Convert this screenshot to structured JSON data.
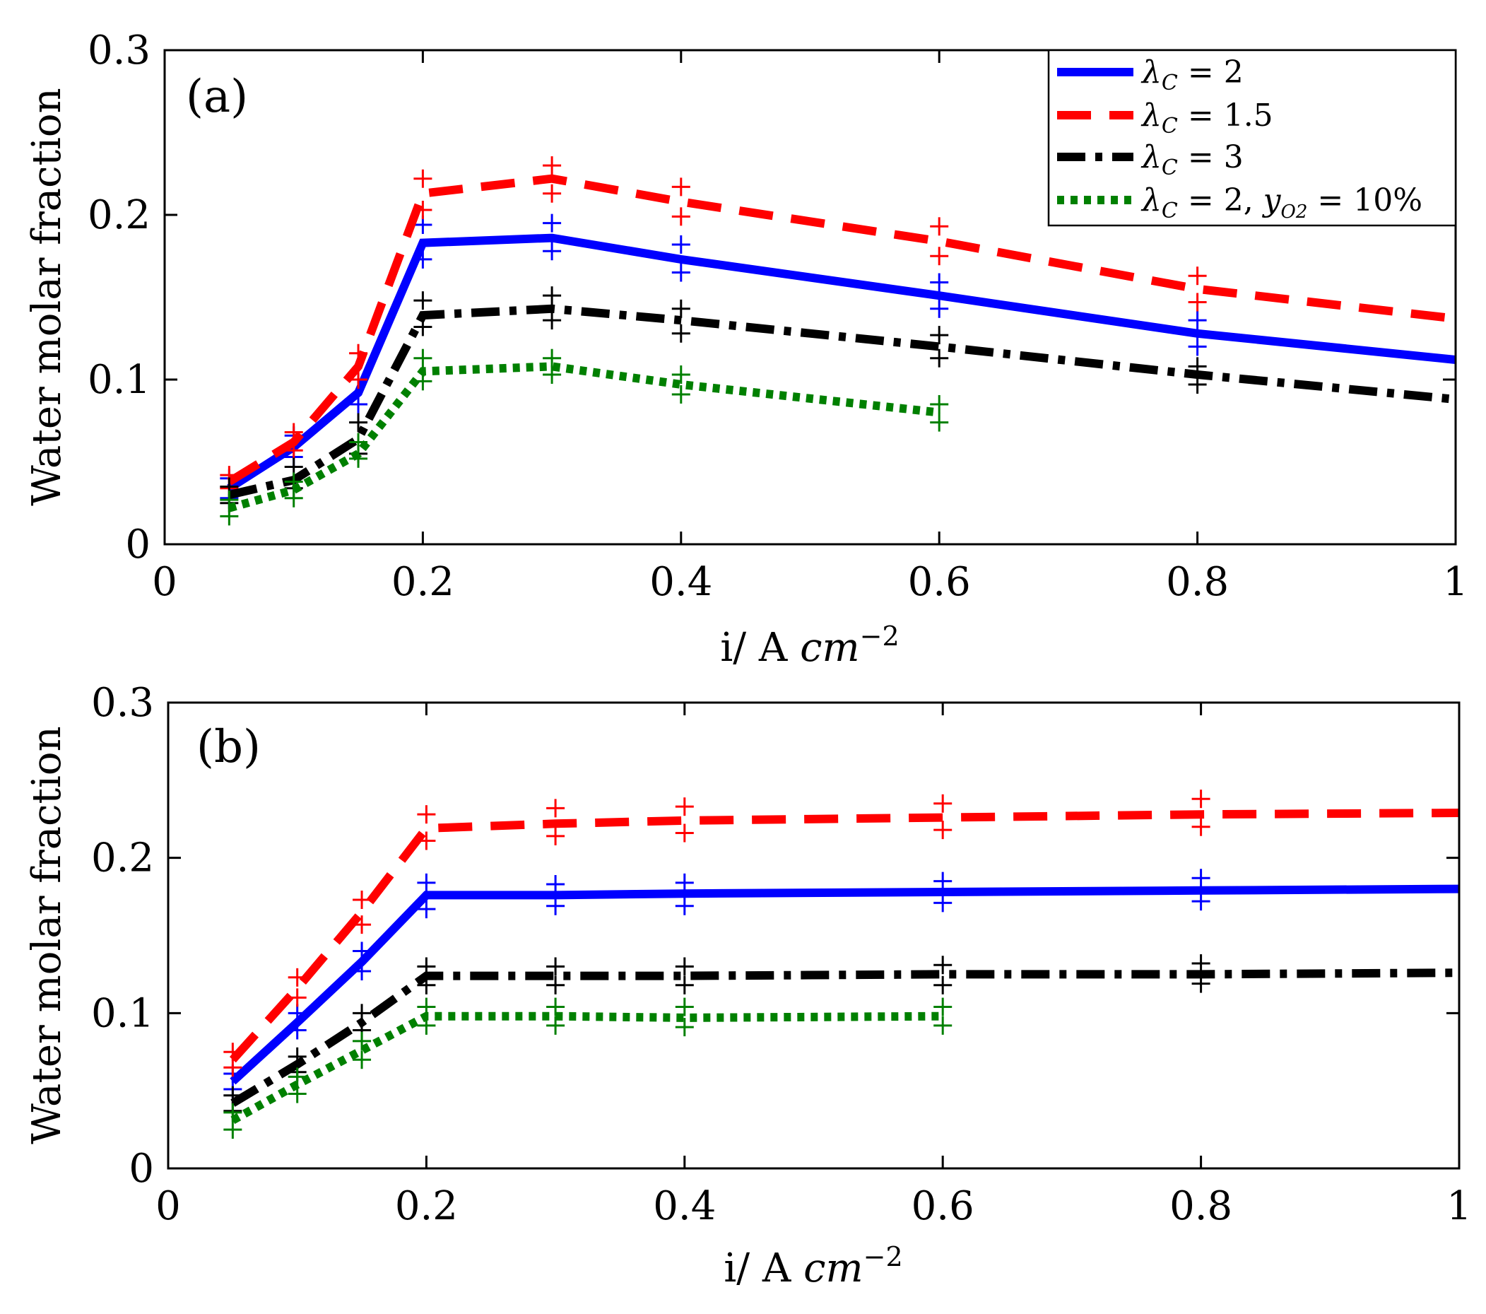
{
  "figure": {
    "legend": [
      {
        "series": "lc2",
        "label": "λC = 2",
        "base": "λ",
        "sub": "C",
        "tail": " = 2"
      },
      {
        "series": "lc15",
        "label": "λC = 1.5",
        "base": "λ",
        "sub": "C",
        "tail": " = 1.5"
      },
      {
        "series": "lc3",
        "label": "λC = 3",
        "base": "λ",
        "sub": "C",
        "tail": " = 3"
      },
      {
        "series": "lc2o2",
        "label": "λC = 2, yO2 = 10%",
        "base": "λ",
        "sub": "C",
        "tail": " = 2, ",
        "base2": "y",
        "sub2": "O2",
        "tail2": " = 10%"
      }
    ],
    "colors": {
      "lc2": "#0000ff",
      "lc15": "#ff0000",
      "lc3": "#000000",
      "lc2o2": "#008000"
    }
  },
  "chart_data": [
    {
      "type": "line",
      "panel_label": "(a)",
      "xlabel": "i/ A cm−2",
      "xlabel_parts": {
        "plain": "i/ A ",
        "italic": "cm",
        "sup": "−2"
      },
      "ylabel": "Water molar fraction",
      "xlim": [
        0,
        1
      ],
      "ylim": [
        0,
        0.3
      ],
      "xticks": [
        0,
        0.2,
        0.4,
        0.6,
        0.8,
        1
      ],
      "xtick_labels": [
        "0",
        "0.2",
        "0.4",
        "0.6",
        "0.8",
        "1"
      ],
      "yticks": [
        0,
        0.1,
        0.2,
        0.3
      ],
      "ytick_labels": [
        "0",
        "0.1",
        "0.2",
        "0.3"
      ],
      "legend_position": "top-right",
      "series": [
        {
          "id": "lc2",
          "name": "λC = 2",
          "style": "solid",
          "x": [
            0.05,
            0.1,
            0.15,
            0.2,
            0.3,
            0.4,
            0.6,
            0.8,
            1.0
          ],
          "y": [
            0.034,
            0.059,
            0.092,
            0.183,
            0.186,
            0.173,
            0.151,
            0.128,
            0.112
          ],
          "error_x": [
            0.05,
            0.1,
            0.15,
            0.2,
            0.3,
            0.4,
            0.6,
            0.8
          ],
          "error_upper": [
            0.04,
            0.066,
            0.1,
            0.194,
            0.195,
            0.182,
            0.159,
            0.136
          ],
          "error_lower": [
            0.028,
            0.053,
            0.085,
            0.173,
            0.178,
            0.165,
            0.143,
            0.12
          ]
        },
        {
          "id": "lc15",
          "name": "λC = 1.5",
          "style": "dashed",
          "x": [
            0.05,
            0.1,
            0.15,
            0.2,
            0.3,
            0.4,
            0.6,
            0.8,
            1.0
          ],
          "y": [
            0.038,
            0.062,
            0.108,
            0.213,
            0.222,
            0.208,
            0.184,
            0.155,
            0.137
          ],
          "error_x": [
            0.05,
            0.1,
            0.15,
            0.2,
            0.3,
            0.4,
            0.6,
            0.8
          ],
          "error_upper": [
            0.042,
            0.068,
            0.116,
            0.222,
            0.23,
            0.217,
            0.193,
            0.163
          ],
          "error_lower": [
            0.034,
            0.057,
            0.1,
            0.203,
            0.213,
            0.199,
            0.175,
            0.147
          ]
        },
        {
          "id": "lc3",
          "name": "λC = 3",
          "style": "dashdot",
          "x": [
            0.05,
            0.1,
            0.15,
            0.2,
            0.3,
            0.4,
            0.6,
            0.8,
            1.0
          ],
          "y": [
            0.03,
            0.039,
            0.064,
            0.139,
            0.143,
            0.136,
            0.12,
            0.103,
            0.088
          ],
          "error_x": [
            0.05,
            0.1,
            0.15,
            0.2,
            0.3,
            0.4,
            0.6,
            0.8
          ],
          "error_upper": [
            0.035,
            0.047,
            0.074,
            0.148,
            0.151,
            0.143,
            0.127,
            0.108
          ],
          "error_lower": [
            0.025,
            0.034,
            0.055,
            0.132,
            0.136,
            0.128,
            0.113,
            0.097
          ]
        },
        {
          "id": "lc2o2",
          "name": "λC = 2, yO2 = 10%",
          "style": "dotted",
          "x": [
            0.05,
            0.1,
            0.15,
            0.2,
            0.3,
            0.4,
            0.6
          ],
          "y": [
            0.022,
            0.033,
            0.055,
            0.105,
            0.108,
            0.097,
            0.08
          ],
          "error_x": [
            0.05,
            0.1,
            0.15,
            0.2,
            0.3,
            0.4,
            0.6
          ],
          "error_upper": [
            0.027,
            0.038,
            0.062,
            0.113,
            0.113,
            0.103,
            0.085
          ],
          "error_lower": [
            0.017,
            0.028,
            0.052,
            0.099,
            0.103,
            0.091,
            0.074
          ]
        }
      ]
    },
    {
      "type": "line",
      "panel_label": "(b)",
      "xlabel": "i/ A cm−2",
      "xlabel_parts": {
        "plain": "i/ A ",
        "italic": "cm",
        "sup": "−2"
      },
      "ylabel": "Water molar fraction",
      "xlim": [
        0,
        1
      ],
      "ylim": [
        0,
        0.3
      ],
      "xticks": [
        0,
        0.2,
        0.4,
        0.6,
        0.8,
        1
      ],
      "xtick_labels": [
        "0",
        "0.2",
        "0.4",
        "0.6",
        "0.8",
        "1"
      ],
      "yticks": [
        0,
        0.1,
        0.2,
        0.3
      ],
      "ytick_labels": [
        "0",
        "0.1",
        "0.2",
        "0.3"
      ],
      "series": [
        {
          "id": "lc2",
          "name": "λC = 2",
          "style": "solid",
          "x": [
            0.05,
            0.1,
            0.15,
            0.2,
            0.3,
            0.4,
            0.6,
            0.8,
            1.0
          ],
          "y": [
            0.056,
            0.094,
            0.133,
            0.176,
            0.176,
            0.177,
            0.178,
            0.179,
            0.18
          ],
          "error_x": [
            0.05,
            0.1,
            0.15,
            0.2,
            0.3,
            0.4,
            0.6,
            0.8
          ],
          "error_upper": [
            0.061,
            0.1,
            0.14,
            0.184,
            0.183,
            0.184,
            0.185,
            0.187
          ],
          "error_lower": [
            0.051,
            0.089,
            0.127,
            0.167,
            0.169,
            0.169,
            0.171,
            0.172
          ]
        },
        {
          "id": "lc15",
          "name": "λC = 1.5",
          "style": "dashed",
          "x": [
            0.05,
            0.1,
            0.15,
            0.2,
            0.3,
            0.4,
            0.6,
            0.8,
            1.0
          ],
          "y": [
            0.07,
            0.116,
            0.165,
            0.219,
            0.222,
            0.224,
            0.226,
            0.228,
            0.229
          ],
          "error_x": [
            0.05,
            0.1,
            0.15,
            0.2,
            0.3,
            0.4,
            0.6,
            0.8
          ],
          "error_upper": [
            0.075,
            0.123,
            0.173,
            0.228,
            0.232,
            0.233,
            0.235,
            0.238
          ],
          "error_lower": [
            0.065,
            0.11,
            0.157,
            0.211,
            0.214,
            0.216,
            0.218,
            0.22
          ]
        },
        {
          "id": "lc3",
          "name": "λC = 3",
          "style": "dashdot",
          "x": [
            0.05,
            0.1,
            0.15,
            0.2,
            0.3,
            0.4,
            0.6,
            0.8,
            1.0
          ],
          "y": [
            0.042,
            0.067,
            0.094,
            0.124,
            0.124,
            0.124,
            0.125,
            0.125,
            0.126
          ],
          "error_x": [
            0.05,
            0.1,
            0.15,
            0.2,
            0.3,
            0.4,
            0.6,
            0.8
          ],
          "error_upper": [
            0.047,
            0.072,
            0.1,
            0.13,
            0.13,
            0.13,
            0.131,
            0.132
          ],
          "error_lower": [
            0.037,
            0.062,
            0.089,
            0.118,
            0.118,
            0.118,
            0.118,
            0.119
          ]
        },
        {
          "id": "lc2o2",
          "name": "λC = 2, yO2 = 10%",
          "style": "dotted",
          "x": [
            0.05,
            0.1,
            0.15,
            0.2,
            0.3,
            0.4,
            0.6
          ],
          "y": [
            0.031,
            0.054,
            0.076,
            0.098,
            0.098,
            0.097,
            0.098
          ],
          "error_x": [
            0.05,
            0.1,
            0.15,
            0.2,
            0.3,
            0.4,
            0.6
          ],
          "error_upper": [
            0.036,
            0.059,
            0.082,
            0.104,
            0.104,
            0.104,
            0.104
          ],
          "error_lower": [
            0.025,
            0.048,
            0.07,
            0.092,
            0.092,
            0.091,
            0.092
          ]
        }
      ]
    }
  ]
}
